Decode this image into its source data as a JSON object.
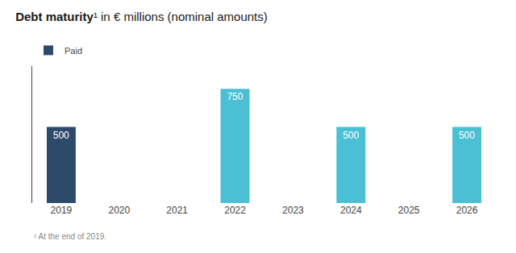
{
  "chart_data": {
    "type": "bar",
    "title": "Debt maturity¹ in € millions (nominal amounts)",
    "annotations": [
      "¹ At the end of 2019."
    ],
    "categories": [
      "2019",
      "2020",
      "2021",
      "2022",
      "2023",
      "2024",
      "2025",
      "2026"
    ],
    "series": [
      {
        "name": "Paid",
        "color": "#2e4a6b",
        "values": [
          500,
          null,
          null,
          null,
          null,
          null,
          null,
          null
        ],
        "value_labels": [
          "500",
          null,
          null,
          null,
          null,
          null,
          null,
          null
        ]
      },
      {
        "color": "#4bbfd4",
        "values": [
          null,
          0,
          0,
          750,
          0,
          500,
          0,
          500
        ],
        "value_labels": [
          null,
          null,
          null,
          "750",
          null,
          "500",
          null,
          "500"
        ]
      }
    ],
    "ylim": [
      0,
      900
    ],
    "data_labels": true,
    "legend": "upper left",
    "grid": false,
    "tick_labels": "x"
  }
}
